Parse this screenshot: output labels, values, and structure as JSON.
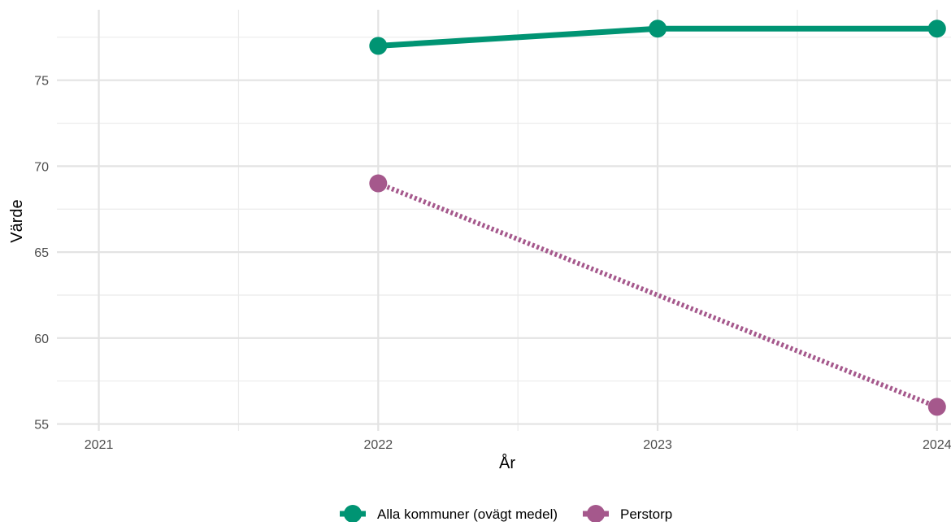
{
  "chart_data": {
    "type": "line",
    "title": "",
    "xlabel": "År",
    "ylabel": "Värde",
    "x": [
      2021,
      2022,
      2023,
      2024
    ],
    "x_tick_labels": [
      "2021",
      "2022",
      "2023",
      "2024"
    ],
    "xlim": [
      2020.85,
      2024.05
    ],
    "y_ticks": [
      55,
      60,
      65,
      70,
      75
    ],
    "y_tick_labels": [
      "55",
      "60",
      "65",
      "70",
      "75"
    ],
    "ylim": [
      54.6,
      79.1
    ],
    "grid": true,
    "legend_position": "bottom",
    "series": [
      {
        "name": "Alla kommuner (ovägt medel)",
        "color": "#009473",
        "line_style": "solid",
        "points": [
          {
            "x": 2022,
            "y": 77
          },
          {
            "x": 2023,
            "y": 78
          },
          {
            "x": 2024,
            "y": 78
          }
        ]
      },
      {
        "name": "Perstorp",
        "color": "#A5588C",
        "line_style": "dotted",
        "points": [
          {
            "x": 2022,
            "y": 69
          },
          {
            "x": 2024,
            "y": 56
          }
        ]
      }
    ]
  }
}
